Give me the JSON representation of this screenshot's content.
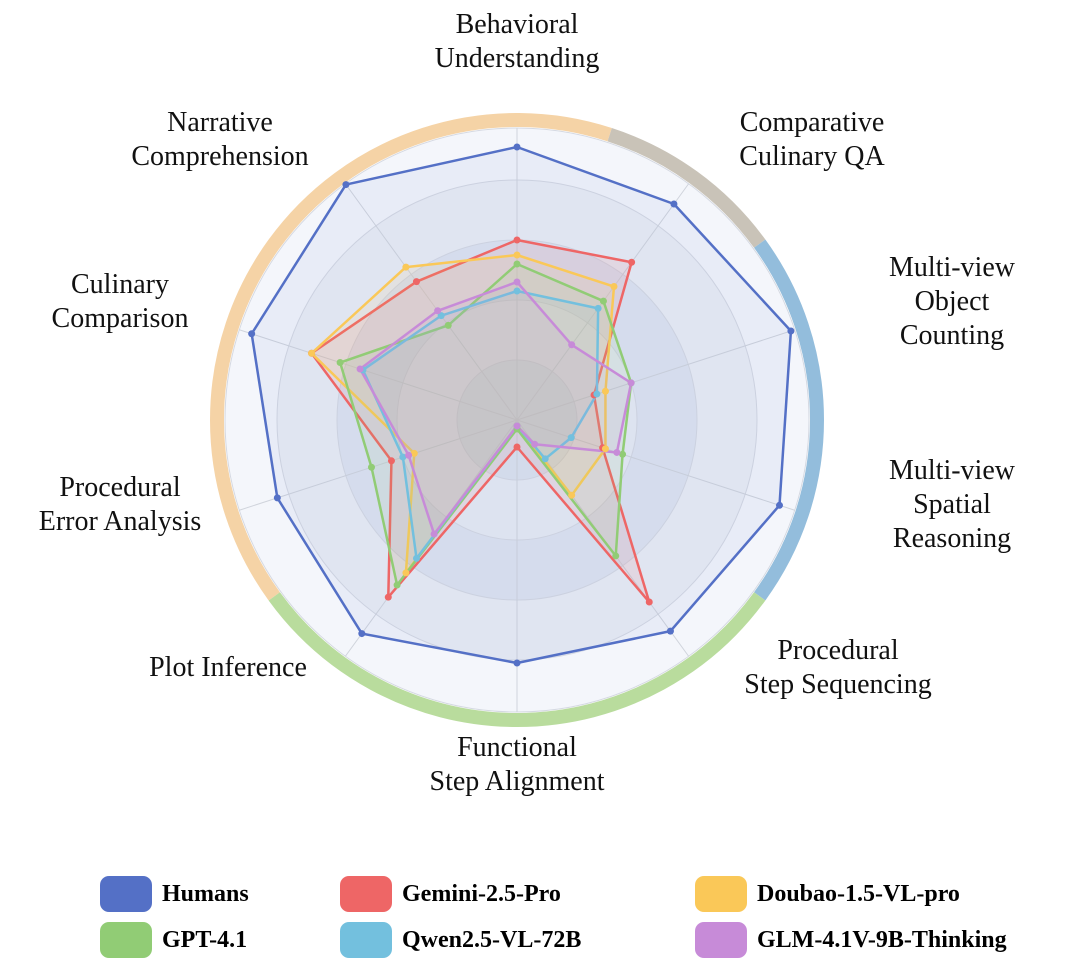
{
  "chart_data": {
    "type": "radar",
    "categories": [
      "Behavioral\nUnderstanding",
      "Comparative\nCulinary QA",
      "Multi-view\nObject Counting",
      "Multi-view\nSpatial Reasoning",
      "Procedural\nStep Sequencing",
      "Functional\nStep Alignment",
      "Plot Inference",
      "Procedural\nError Analysis",
      "Culinary\nComparison",
      "Narrative\nComprehension"
    ],
    "rlim": [
      0,
      100
    ],
    "rticks": [
      20,
      40,
      60,
      80,
      100
    ],
    "series": [
      {
        "name": "Humans",
        "color": "#5470c6",
        "values": [
          91,
          89,
          96,
          92,
          87,
          81,
          88,
          84,
          93,
          97
        ]
      },
      {
        "name": "Gemini-2.5-Pro",
        "color": "#ee6666",
        "values": [
          60,
          65,
          27,
          30,
          75,
          9,
          73,
          44,
          72,
          57
        ]
      },
      {
        "name": "Doubao-1.5-VL-pro",
        "color": "#fac858",
        "values": [
          55,
          55,
          31,
          31,
          31,
          2,
          63,
          36,
          72,
          63
        ]
      },
      {
        "name": "GPT-4.1",
        "color": "#91cc75",
        "values": [
          52,
          49,
          40,
          37,
          56,
          3,
          68,
          51,
          62,
          39
        ]
      },
      {
        "name": "Qwen2.5-VL-72B",
        "color": "#73c0de",
        "values": [
          43,
          46,
          28,
          19,
          16,
          2,
          57,
          40,
          54,
          43
        ]
      },
      {
        "name": "GLM-4.1V-9B-Thinking",
        "color": "#c78bd8",
        "values": [
          46,
          31,
          40,
          35,
          10,
          2,
          47,
          38,
          55,
          45
        ]
      }
    ]
  }
}
